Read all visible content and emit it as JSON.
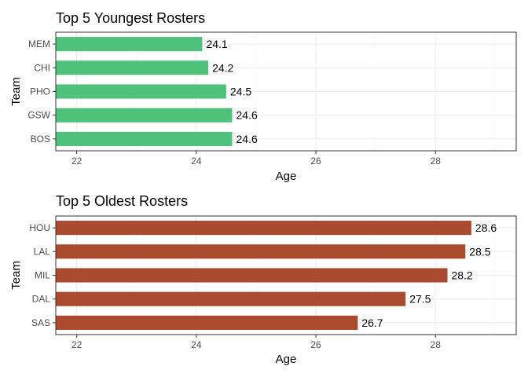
{
  "chart_data": [
    {
      "type": "bar",
      "orientation": "horizontal",
      "title": "Top 5 Youngest Rosters",
      "xlabel": "Age",
      "ylabel": "Team",
      "categories": [
        "MEM",
        "CHI",
        "PHO",
        "GSW",
        "BOS"
      ],
      "values": [
        24.1,
        24.2,
        24.5,
        24.6,
        24.6
      ],
      "value_labels": [
        "24.1",
        "24.2",
        "24.5",
        "24.6",
        "24.6"
      ],
      "xlim": [
        21.65,
        29.35
      ],
      "x_ticks": [
        22,
        24,
        26,
        28
      ],
      "x_tick_labels": [
        "22",
        "24",
        "26",
        "28"
      ],
      "bar_color": "#50c17a",
      "grid": true,
      "legend": "none"
    },
    {
      "type": "bar",
      "orientation": "horizontal",
      "title": "Top 5 Oldest Rosters",
      "xlabel": "Age",
      "ylabel": "Team",
      "categories": [
        "HOU",
        "LAL",
        "MIL",
        "DAL",
        "SAS"
      ],
      "values": [
        28.6,
        28.5,
        28.2,
        27.5,
        26.7
      ],
      "value_labels": [
        "28.6",
        "28.5",
        "28.2",
        "27.5",
        "26.7"
      ],
      "xlim": [
        21.65,
        29.35
      ],
      "x_ticks": [
        22,
        24,
        26,
        28
      ],
      "x_tick_labels": [
        "22",
        "24",
        "26",
        "28"
      ],
      "bar_color": "#aa4a2e",
      "grid": true,
      "legend": "none"
    }
  ]
}
